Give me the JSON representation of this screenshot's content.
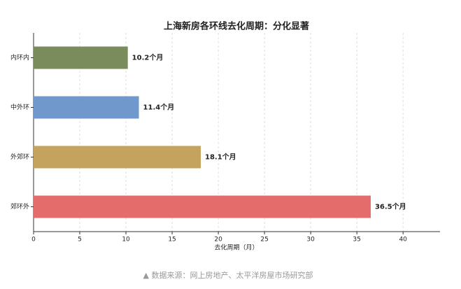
{
  "chart_data": {
    "type": "bar",
    "orientation": "horizontal",
    "title": "上海新房各环线去化周期：分化显著",
    "categories": [
      "内环内",
      "中外环",
      "外郊环",
      "郊环外"
    ],
    "values": [
      10.2,
      11.4,
      18.1,
      36.5
    ],
    "value_labels": [
      "10.2个月",
      "11.4个月",
      "18.1个月",
      "36.5个月"
    ],
    "colors": [
      "#7a8c5c",
      "#7098cc",
      "#c4a35e",
      "#e46c6a"
    ],
    "xlabel": "去化周期（月）",
    "xlim": [
      0,
      44
    ],
    "xticks": [
      0,
      5,
      10,
      15,
      20,
      25,
      30,
      35,
      40
    ],
    "grid": true
  },
  "footer": "▲ 数据来源：网上房地产、太平洋房屋市场研究部"
}
